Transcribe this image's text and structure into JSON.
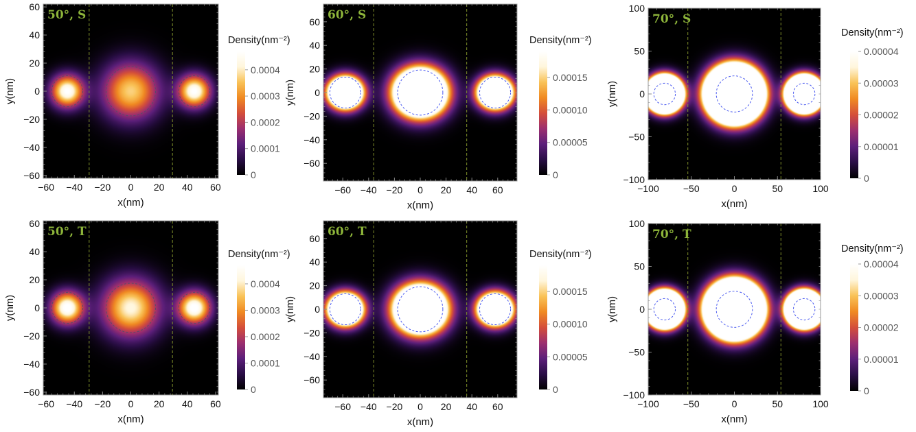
{
  "colors": {
    "background": "#000000",
    "panel_label": "#8DB43A",
    "barrier_line": "#7F8F2A",
    "circle_50deg": "#5A4A6A",
    "circle_60_70deg": "#4A5AF0",
    "colormap": [
      "#000000",
      "#2A0E46",
      "#5C1F7A",
      "#9C2F6F",
      "#D44E3A",
      "#F08A22",
      "#F9C257",
      "#FFF6DC",
      "#FFFFFF"
    ]
  },
  "chart_data": [
    {
      "type": "heatmap",
      "label": "50°, S",
      "density_title": "Density(nm⁻²)",
      "xlabel": "x(nm)",
      "ylabel": "y(nm)",
      "xlim": [
        -62,
        62
      ],
      "ylim": [
        -62,
        62
      ],
      "xticks": [
        "−60",
        "−40",
        "−20",
        "0",
        "20",
        "40",
        "60"
      ],
      "xtick_values": [
        -60,
        -40,
        -20,
        0,
        20,
        40,
        60
      ],
      "yticks": [
        "60",
        "40",
        "20",
        "0",
        "−20",
        "−40",
        "−60"
      ],
      "ytick_values": [
        60,
        40,
        20,
        0,
        -20,
        -40,
        -60
      ],
      "colorbar_ticks": [
        "0.0004",
        "0.0003",
        "0.0002",
        "0.0001",
        "0"
      ],
      "colorbar_tick_values": [
        0.0004,
        0.0003,
        0.0002,
        0.0001,
        0
      ],
      "colorbar_max": 0.00047,
      "barriers_x": [
        -29.5,
        29.5
      ],
      "dots": [
        {
          "x": -45,
          "y": 0,
          "r": 11,
          "peak": 0.000475,
          "sigma": 8
        },
        {
          "x": 0,
          "y": 0,
          "r": 17.5,
          "peak": 0.00037,
          "sigma": 14
        },
        {
          "x": 45,
          "y": 0,
          "r": 11,
          "peak": 0.000475,
          "sigma": 8
        }
      ]
    },
    {
      "type": "heatmap",
      "label": "60°, S",
      "density_title": "Density(nm⁻²)",
      "xlabel": "x(nm)",
      "ylabel": "y(nm)",
      "xlim": [
        -75,
        75
      ],
      "ylim": [
        -75,
        75
      ],
      "xticks": [
        "−60",
        "−40",
        "−20",
        "0",
        "20",
        "40",
        "60"
      ],
      "xtick_values": [
        -60,
        -40,
        -20,
        0,
        20,
        40,
        60
      ],
      "yticks": [
        "60",
        "40",
        "20",
        "0",
        "−20",
        "−40",
        "−60"
      ],
      "ytick_values": [
        60,
        40,
        20,
        0,
        -20,
        -40,
        -60
      ],
      "colorbar_ticks": [
        "0.00015",
        "0.00010",
        "0.00005",
        "0"
      ],
      "colorbar_tick_values": [
        0.00015,
        0.0001,
        5e-05,
        0
      ],
      "colorbar_max": 0.00019,
      "barriers_x": [
        -36,
        36
      ],
      "dots": [
        {
          "x": -58,
          "y": 0,
          "r": 12,
          "peak": 0.0006,
          "sigma": 8.5
        },
        {
          "x": 0,
          "y": 0,
          "r": 17.5,
          "peak": 0.0007,
          "sigma": 12.5
        },
        {
          "x": 58,
          "y": 0,
          "r": 12,
          "peak": 0.0006,
          "sigma": 8.5
        }
      ]
    },
    {
      "type": "heatmap",
      "label": "70°, S",
      "density_title": "Density(nm⁻²)",
      "xlabel": "x(nm)",
      "ylabel": "y(nm)",
      "xlim": [
        -100,
        100
      ],
      "ylim": [
        -100,
        100
      ],
      "xticks": [
        "−100",
        "−50",
        "0",
        "50",
        "100"
      ],
      "xtick_values": [
        -100,
        -50,
        0,
        50,
        100
      ],
      "yticks": [
        "100",
        "50",
        "0",
        "−50",
        "−100"
      ],
      "ytick_values": [
        100,
        50,
        0,
        -50,
        -100
      ],
      "colorbar_ticks": [
        "0.00004",
        "0.00003",
        "0.00002",
        "0.00001",
        "0"
      ],
      "colorbar_tick_values": [
        4e-05,
        3e-05,
        2e-05,
        1e-05,
        0
      ],
      "colorbar_max": 4e-05,
      "barriers_x": [
        -54,
        54
      ],
      "dots": [
        {
          "x": -81,
          "y": 0,
          "r": 12.5,
          "peak": 0.00035,
          "sigma": 11
        },
        {
          "x": 0,
          "y": 0,
          "r": 21,
          "peak": 0.0004,
          "sigma": 17
        },
        {
          "x": 81,
          "y": 0,
          "r": 12.5,
          "peak": 0.00035,
          "sigma": 11
        }
      ]
    },
    {
      "type": "heatmap",
      "label": "50°, T",
      "density_title": "Density(nm⁻²)",
      "xlabel": "x(nm)",
      "ylabel": "y(nm)",
      "xlim": [
        -62,
        62
      ],
      "ylim": [
        -62,
        62
      ],
      "xticks": [
        "−60",
        "−40",
        "−20",
        "0",
        "20",
        "40",
        "60"
      ],
      "xtick_values": [
        -60,
        -40,
        -20,
        0,
        20,
        40,
        60
      ],
      "yticks": [
        "60",
        "40",
        "20",
        "0",
        "−20",
        "−40",
        "−60"
      ],
      "ytick_values": [
        60,
        40,
        20,
        0,
        -20,
        -40,
        -60
      ],
      "colorbar_ticks": [
        "0.0004",
        "0.0003",
        "0.0002",
        "0.0001",
        "0"
      ],
      "colorbar_tick_values": [
        0.0004,
        0.0003,
        0.0002,
        0.0001,
        0
      ],
      "colorbar_max": 0.00047,
      "barriers_x": [
        -29.5,
        29.5
      ],
      "dots": [
        {
          "x": -45,
          "y": 0,
          "r": 11,
          "peak": 0.00049,
          "sigma": 8
        },
        {
          "x": 0,
          "y": 0,
          "r": 17.5,
          "peak": 0.00042,
          "sigma": 14
        },
        {
          "x": 45,
          "y": 0,
          "r": 11,
          "peak": 0.00049,
          "sigma": 8
        }
      ]
    },
    {
      "type": "heatmap",
      "label": "60°, T",
      "density_title": "Density(nm⁻²)",
      "xlabel": "x(nm)",
      "ylabel": "y(nm)",
      "xlim": [
        -75,
        75
      ],
      "ylim": [
        -75,
        75
      ],
      "xticks": [
        "−60",
        "−40",
        "−20",
        "0",
        "20",
        "40",
        "60"
      ],
      "xtick_values": [
        -60,
        -40,
        -20,
        0,
        20,
        40,
        60
      ],
      "yticks": [
        "60",
        "40",
        "20",
        "0",
        "−20",
        "−40",
        "−60"
      ],
      "ytick_values": [
        60,
        40,
        20,
        0,
        -20,
        -40,
        -60
      ],
      "colorbar_ticks": [
        "0.00015",
        "0.00010",
        "0.00005",
        "0"
      ],
      "colorbar_tick_values": [
        0.00015,
        0.0001,
        5e-05,
        0
      ],
      "colorbar_max": 0.00019,
      "barriers_x": [
        -36,
        36
      ],
      "dots": [
        {
          "x": -58,
          "y": 0,
          "r": 12,
          "peak": 0.0006,
          "sigma": 8.5
        },
        {
          "x": 0,
          "y": 0,
          "r": 17.5,
          "peak": 0.0007,
          "sigma": 12.5
        },
        {
          "x": 58,
          "y": 0,
          "r": 12,
          "peak": 0.0006,
          "sigma": 8.5
        }
      ]
    },
    {
      "type": "heatmap",
      "label": "70°, T",
      "density_title": "Density(nm⁻²)",
      "xlabel": "x(nm)",
      "ylabel": "y(nm)",
      "xlim": [
        -100,
        100
      ],
      "ylim": [
        -100,
        100
      ],
      "xticks": [
        "−100",
        "−50",
        "0",
        "50",
        "100"
      ],
      "xtick_values": [
        -100,
        -50,
        0,
        50,
        100
      ],
      "yticks": [
        "100",
        "50",
        "0",
        "−50",
        "−100"
      ],
      "ytick_values": [
        100,
        50,
        0,
        -50,
        -100
      ],
      "colorbar_ticks": [
        "0.00004",
        "0.00003",
        "0.00002",
        "0.00001",
        "0"
      ],
      "colorbar_tick_values": [
        4e-05,
        3e-05,
        2e-05,
        1e-05,
        0
      ],
      "colorbar_max": 4e-05,
      "barriers_x": [
        -54,
        54
      ],
      "dots": [
        {
          "x": -81,
          "y": 0,
          "r": 12.5,
          "peak": 0.00035,
          "sigma": 11
        },
        {
          "x": 0,
          "y": 0,
          "r": 21,
          "peak": 0.0004,
          "sigma": 17
        },
        {
          "x": 81,
          "y": 0,
          "r": 12.5,
          "peak": 0.00035,
          "sigma": 11
        }
      ]
    }
  ]
}
